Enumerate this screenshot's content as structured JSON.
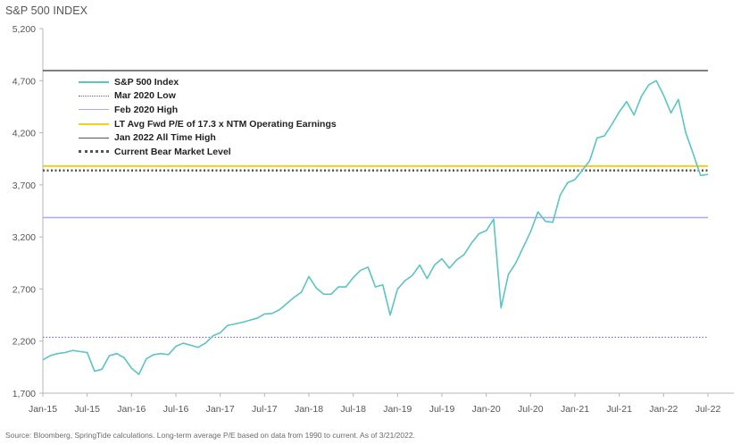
{
  "title": "S&P 500 INDEX",
  "footnote": "Source: Bloomberg, SpringTide calculations. Long-term average P/E based on data from 1990 to current. As of 3/21/2022.",
  "chart_data": {
    "type": "line",
    "title": "S&P 500 INDEX",
    "xlabel": "",
    "ylabel": "",
    "ylim": [
      1700,
      5200
    ],
    "y_ticks": [
      "1,700",
      "2,200",
      "2,700",
      "3,200",
      "3,700",
      "4,200",
      "4,700",
      "5,200"
    ],
    "y_tick_values": [
      1700,
      2200,
      2700,
      3200,
      3700,
      4200,
      4700,
      5200
    ],
    "x_ticks": [
      "Jan-15",
      "Jul-15",
      "Jan-16",
      "Jul-16",
      "Jan-17",
      "Jul-17",
      "Jan-18",
      "Jul-18",
      "Jan-19",
      "Jul-19",
      "Jan-20",
      "Jul-20",
      "Jan-21",
      "Jul-21",
      "Jan-22",
      "Jul-22"
    ],
    "x_tick_values": [
      "2015-01",
      "2015-07",
      "2016-01",
      "2016-07",
      "2017-01",
      "2017-07",
      "2018-01",
      "2018-07",
      "2019-01",
      "2019-07",
      "2020-01",
      "2020-07",
      "2021-01",
      "2021-07",
      "2022-01",
      "2022-07"
    ],
    "grid": false,
    "legend_position": "top-left",
    "colors": {
      "index": "#5bc4c4",
      "mar2020low": "#5b5bd6",
      "feb2020high": "#a8a8ee",
      "ltavg": "#f2cf1a",
      "ath": "#555555",
      "bear": "#555555",
      "axis": "#b5b5b5",
      "tick_text": "#555555"
    },
    "series": [
      {
        "name": "S&P 500 Index",
        "x": [
          "2015-01",
          "2015-02",
          "2015-03",
          "2015-04",
          "2015-05",
          "2015-06",
          "2015-07",
          "2015-08",
          "2015-09",
          "2015-10",
          "2015-11",
          "2015-12",
          "2016-01",
          "2016-02",
          "2016-03",
          "2016-04",
          "2016-05",
          "2016-06",
          "2016-07",
          "2016-08",
          "2016-09",
          "2016-10",
          "2016-11",
          "2016-12",
          "2017-01",
          "2017-02",
          "2017-03",
          "2017-04",
          "2017-05",
          "2017-06",
          "2017-07",
          "2017-08",
          "2017-09",
          "2017-10",
          "2017-11",
          "2017-12",
          "2018-01",
          "2018-02",
          "2018-03",
          "2018-04",
          "2018-05",
          "2018-06",
          "2018-07",
          "2018-08",
          "2018-09",
          "2018-10",
          "2018-11",
          "2018-12",
          "2019-01",
          "2019-02",
          "2019-03",
          "2019-04",
          "2019-05",
          "2019-06",
          "2019-07",
          "2019-08",
          "2019-09",
          "2019-10",
          "2019-11",
          "2019-12",
          "2020-01",
          "2020-02",
          "2020-03",
          "2020-04",
          "2020-05",
          "2020-06",
          "2020-07",
          "2020-08",
          "2020-09",
          "2020-10",
          "2020-11",
          "2020-12",
          "2021-01",
          "2021-02",
          "2021-03",
          "2021-04",
          "2021-05",
          "2021-06",
          "2021-07",
          "2021-08",
          "2021-09",
          "2021-10",
          "2021-11",
          "2021-12",
          "2022-01",
          "2022-02",
          "2022-03",
          "2022-04",
          "2022-05",
          "2022-06",
          "2022-07"
        ],
        "values": [
          2020,
          2060,
          2080,
          2090,
          2110,
          2100,
          2090,
          1910,
          1930,
          2060,
          2080,
          2040,
          1940,
          1880,
          2030,
          2070,
          2080,
          2070,
          2150,
          2180,
          2160,
          2140,
          2180,
          2250,
          2280,
          2350,
          2365,
          2380,
          2400,
          2420,
          2460,
          2465,
          2500,
          2560,
          2620,
          2670,
          2820,
          2710,
          2650,
          2650,
          2720,
          2720,
          2810,
          2880,
          2910,
          2720,
          2740,
          2450,
          2700,
          2780,
          2830,
          2930,
          2800,
          2930,
          2990,
          2900,
          2980,
          3030,
          3140,
          3230,
          3260,
          3370,
          2520,
          2840,
          2950,
          3100,
          3250,
          3440,
          3350,
          3340,
          3600,
          3720,
          3750,
          3840,
          3930,
          4150,
          4170,
          4280,
          4400,
          4500,
          4370,
          4550,
          4660,
          4700,
          4560,
          4390,
          4520,
          4200,
          4000,
          3790,
          3800
        ]
      },
      {
        "name": "Mar 2020 Low",
        "value": 2237
      },
      {
        "name": "Feb 2020 High",
        "value": 3386
      },
      {
        "name": "LT Avg Fwd P/E of 17.3 x NTM Operating Earnings",
        "value": 3880
      },
      {
        "name": "Jan 2022 All Time High",
        "value": 4797
      },
      {
        "name": "Current Bear Market Level",
        "value": 3838
      }
    ]
  }
}
